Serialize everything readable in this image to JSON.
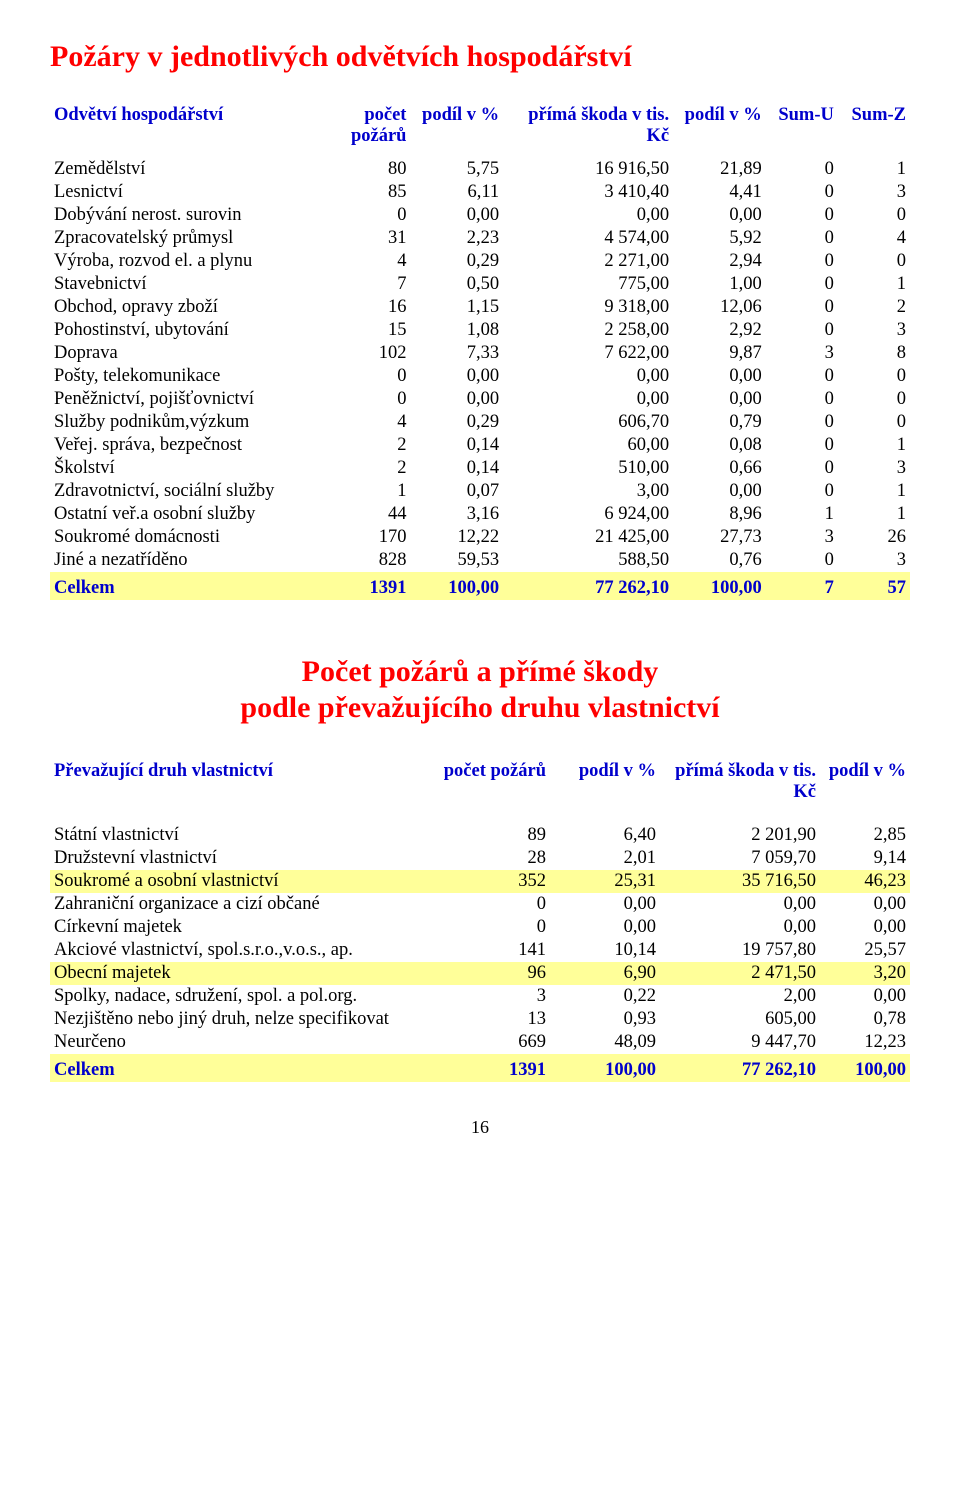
{
  "page": {
    "title1": "Požáry v jednotlivých odvětvích hospodářství",
    "subtitle1": "Počet požárů a přímé škody",
    "subtitle2": "podle převažujícího druhu vlastnictví",
    "page_number": "16"
  },
  "colors": {
    "heading": "#ff0000",
    "header_text": "#0000cc",
    "highlight_bg": "#ffff99",
    "total_text": "#0000cc",
    "body_bg": "#ffffff"
  },
  "table1": {
    "headers": {
      "col0_a": "Odvětví hospodářství",
      "col1_a": "počet",
      "col1_b": "požárů",
      "col2_a": "podíl v %",
      "col3_a": "přímá škoda v tis. Kč",
      "col4_a": "podíl v %",
      "col5_a": "Sum-U",
      "col6_a": "Sum-Z"
    },
    "rows": [
      {
        "n": "Zemědělství",
        "a": "80",
        "b": "5,75",
        "c": "16 916,50",
        "d": "21,89",
        "e": "0",
        "f": "1"
      },
      {
        "n": "Lesnictví",
        "a": "85",
        "b": "6,11",
        "c": "3 410,40",
        "d": "4,41",
        "e": "0",
        "f": "3"
      },
      {
        "n": "Dobývání nerost. surovin",
        "a": "0",
        "b": "0,00",
        "c": "0,00",
        "d": "0,00",
        "e": "0",
        "f": "0"
      },
      {
        "n": "Zpracovatelský průmysl",
        "a": "31",
        "b": "2,23",
        "c": "4 574,00",
        "d": "5,92",
        "e": "0",
        "f": "4"
      },
      {
        "n": "Výroba, rozvod el. a plynu",
        "a": "4",
        "b": "0,29",
        "c": "2 271,00",
        "d": "2,94",
        "e": "0",
        "f": "0"
      },
      {
        "n": "Stavebnictví",
        "a": "7",
        "b": "0,50",
        "c": "775,00",
        "d": "1,00",
        "e": "0",
        "f": "1"
      },
      {
        "n": "Obchod, opravy zboží",
        "a": "16",
        "b": "1,15",
        "c": "9 318,00",
        "d": "12,06",
        "e": "0",
        "f": "2"
      },
      {
        "n": "Pohostinství, ubytování",
        "a": "15",
        "b": "1,08",
        "c": "2 258,00",
        "d": "2,92",
        "e": "0",
        "f": "3"
      },
      {
        "n": "Doprava",
        "a": "102",
        "b": "7,33",
        "c": "7 622,00",
        "d": "9,87",
        "e": "3",
        "f": "8"
      },
      {
        "n": "Pošty, telekomunikace",
        "a": "0",
        "b": "0,00",
        "c": "0,00",
        "d": "0,00",
        "e": "0",
        "f": "0"
      },
      {
        "n": "Peněžnictví, pojišťovnictví",
        "a": "0",
        "b": "0,00",
        "c": "0,00",
        "d": "0,00",
        "e": "0",
        "f": "0"
      },
      {
        "n": "Služby podnikům,výzkum",
        "a": "4",
        "b": "0,29",
        "c": "606,70",
        "d": "0,79",
        "e": "0",
        "f": "0"
      },
      {
        "n": "Veřej. správa, bezpečnost",
        "a": "2",
        "b": "0,14",
        "c": "60,00",
        "d": "0,08",
        "e": "0",
        "f": "1"
      },
      {
        "n": "Školství",
        "a": "2",
        "b": "0,14",
        "c": "510,00",
        "d": "0,66",
        "e": "0",
        "f": "3"
      },
      {
        "n": "Zdravotnictví, sociální služby",
        "a": "1",
        "b": "0,07",
        "c": "3,00",
        "d": "0,00",
        "e": "0",
        "f": "1"
      },
      {
        "n": "Ostatní veř.a osobní služby",
        "a": "44",
        "b": "3,16",
        "c": "6 924,00",
        "d": "8,96",
        "e": "1",
        "f": "1"
      },
      {
        "n": "Soukromé domácnosti",
        "a": "170",
        "b": "12,22",
        "c": "21 425,00",
        "d": "27,73",
        "e": "3",
        "f": "26"
      },
      {
        "n": "Jiné a nezatříděno",
        "a": "828",
        "b": "59,53",
        "c": "588,50",
        "d": "0,76",
        "e": "0",
        "f": "3"
      }
    ],
    "total": {
      "n": "Celkem",
      "a": "1391",
      "b": "100,00",
      "c": "77 262,10",
      "d": "100,00",
      "e": "7",
      "f": "57"
    }
  },
  "table2": {
    "headers": {
      "col0": "Převažující druh vlastnictví",
      "col1": "počet požárů",
      "col2": "podíl v %",
      "col3": "přímá škoda v tis. Kč",
      "col4": "podíl v %"
    },
    "rows": [
      {
        "hl": false,
        "n": "Státní vlastnictví",
        "a": "89",
        "b": "6,40",
        "c": "2 201,90",
        "d": "2,85"
      },
      {
        "hl": false,
        "n": "Družstevní vlastnictví",
        "a": "28",
        "b": "2,01",
        "c": "7 059,70",
        "d": "9,14"
      },
      {
        "hl": true,
        "n": "Soukromé a osobní vlastnictví",
        "a": "352",
        "b": "25,31",
        "c": "35 716,50",
        "d": "46,23"
      },
      {
        "hl": false,
        "n": "Zahraniční organizace a cizí občané",
        "a": "0",
        "b": "0,00",
        "c": "0,00",
        "d": "0,00"
      },
      {
        "hl": false,
        "n": "Církevní majetek",
        "a": "0",
        "b": "0,00",
        "c": "0,00",
        "d": "0,00"
      },
      {
        "hl": false,
        "n": "Akciové vlastnictví, spol.s.r.o.,v.o.s., ap.",
        "a": "141",
        "b": "10,14",
        "c": "19 757,80",
        "d": "25,57"
      },
      {
        "hl": true,
        "n": "Obecní majetek",
        "a": "96",
        "b": "6,90",
        "c": "2 471,50",
        "d": "3,20"
      },
      {
        "hl": false,
        "n": "Spolky, nadace, sdružení, spol. a pol.org.",
        "a": "3",
        "b": "0,22",
        "c": "2,00",
        "d": "0,00"
      },
      {
        "hl": false,
        "n": "Nezjištěno nebo jiný druh, nelze specifikovat",
        "a": "13",
        "b": "0,93",
        "c": "605,00",
        "d": "0,78"
      },
      {
        "hl": false,
        "n": "Neurčeno",
        "a": "669",
        "b": "48,09",
        "c": "9 447,70",
        "d": "12,23"
      }
    ],
    "total": {
      "n": "Celkem",
      "a": "1391",
      "b": "100,00",
      "c": "77 262,10",
      "d": "100,00"
    }
  }
}
